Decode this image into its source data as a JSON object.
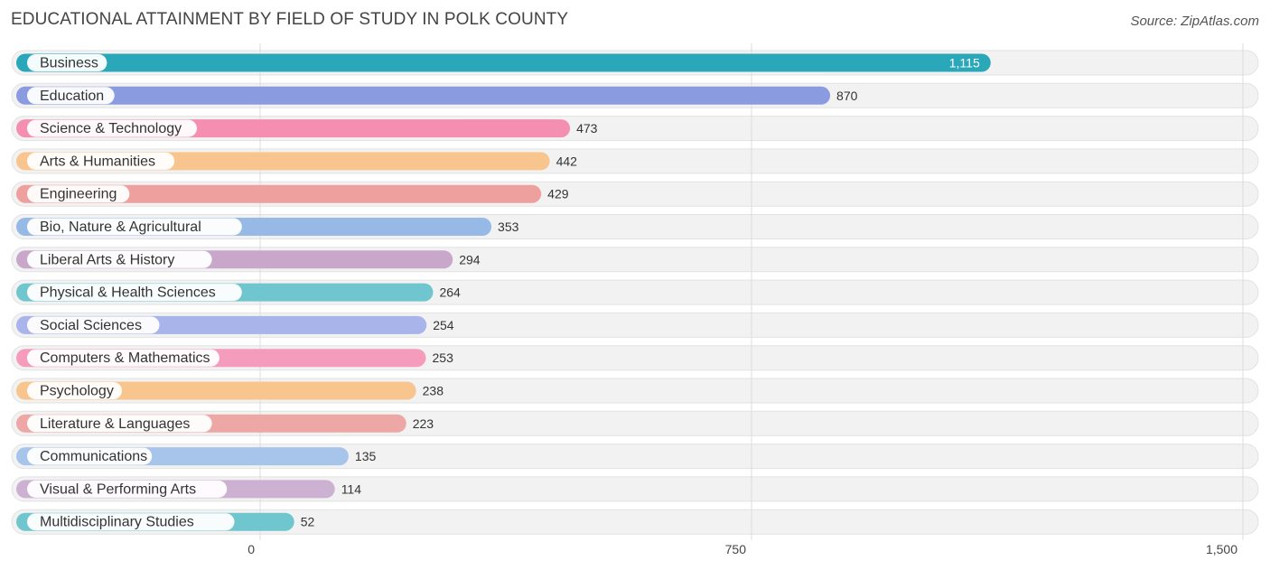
{
  "title": "EDUCATIONAL ATTAINMENT BY FIELD OF STUDY IN POLK COUNTY",
  "source": "Source: ZipAtlas.com",
  "chart_data": {
    "type": "bar",
    "orientation": "horizontal",
    "title": "EDUCATIONAL ATTAINMENT BY FIELD OF STUDY IN POLK COUNTY",
    "xlim": [
      0,
      1500
    ],
    "xticks": [
      0,
      750,
      1500
    ],
    "xtick_labels": [
      "0",
      "750",
      "1,500"
    ],
    "grid": true,
    "categories": [
      "Business",
      "Education",
      "Science & Technology",
      "Arts & Humanities",
      "Engineering",
      "Bio, Nature & Agricultural",
      "Liberal Arts & History",
      "Physical & Health Sciences",
      "Social Sciences",
      "Computers & Mathematics",
      "Psychology",
      "Literature & Languages",
      "Communications",
      "Visual & Performing Arts",
      "Multidisciplinary Studies"
    ],
    "values": [
      1115,
      870,
      473,
      442,
      429,
      353,
      294,
      264,
      254,
      253,
      238,
      223,
      135,
      114,
      52
    ],
    "value_labels": [
      "1,115",
      "870",
      "473",
      "442",
      "429",
      "353",
      "294",
      "264",
      "254",
      "253",
      "238",
      "223",
      "135",
      "114",
      "52"
    ],
    "colors": [
      "#2aa7b8",
      "#8b9be0",
      "#f48fb1",
      "#f9c58e",
      "#eda09e",
      "#96b9e6",
      "#c9a7cb",
      "#6fc6cf",
      "#a9b5ea",
      "#f59cbd",
      "#f9c58e",
      "#eda8a6",
      "#a7c4ea",
      "#cdb1d2",
      "#6fc6cf"
    ]
  }
}
